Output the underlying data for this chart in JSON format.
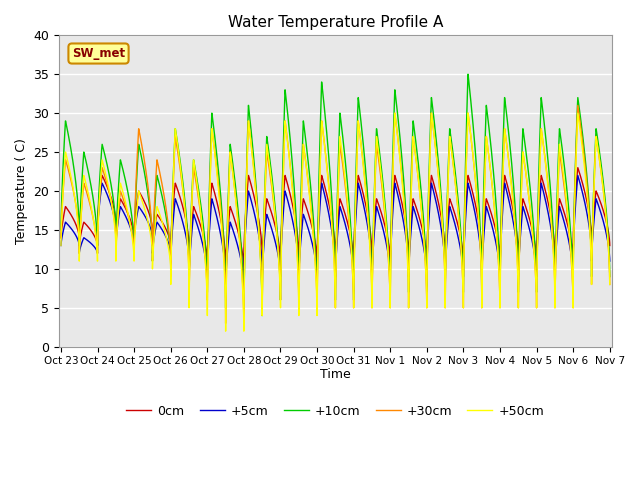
{
  "title": "Water Temperature Profile A",
  "xlabel": "Time",
  "ylabel": "Temperature ( C)",
  "ylim": [
    0,
    40
  ],
  "tick_labels": [
    "Oct 23",
    "Oct 24",
    "Oct 25",
    "Oct 26",
    "Oct 27",
    "Oct 28",
    "Oct 29",
    "Oct 30",
    "Oct 31",
    "Nov 1",
    "Nov 2",
    "Nov 3",
    "Nov 4",
    "Nov 5",
    "Nov 6",
    "Nov 7"
  ],
  "legend_labels": [
    "0cm",
    "+5cm",
    "+10cm",
    "+30cm",
    "+50cm"
  ],
  "legend_colors": [
    "#cc0000",
    "#0000cc",
    "#00cc00",
    "#ff8800",
    "#ffff00"
  ],
  "annotation_text": "SW_met",
  "annotation_bg": "#ffff99",
  "annotation_border": "#cc8800"
}
